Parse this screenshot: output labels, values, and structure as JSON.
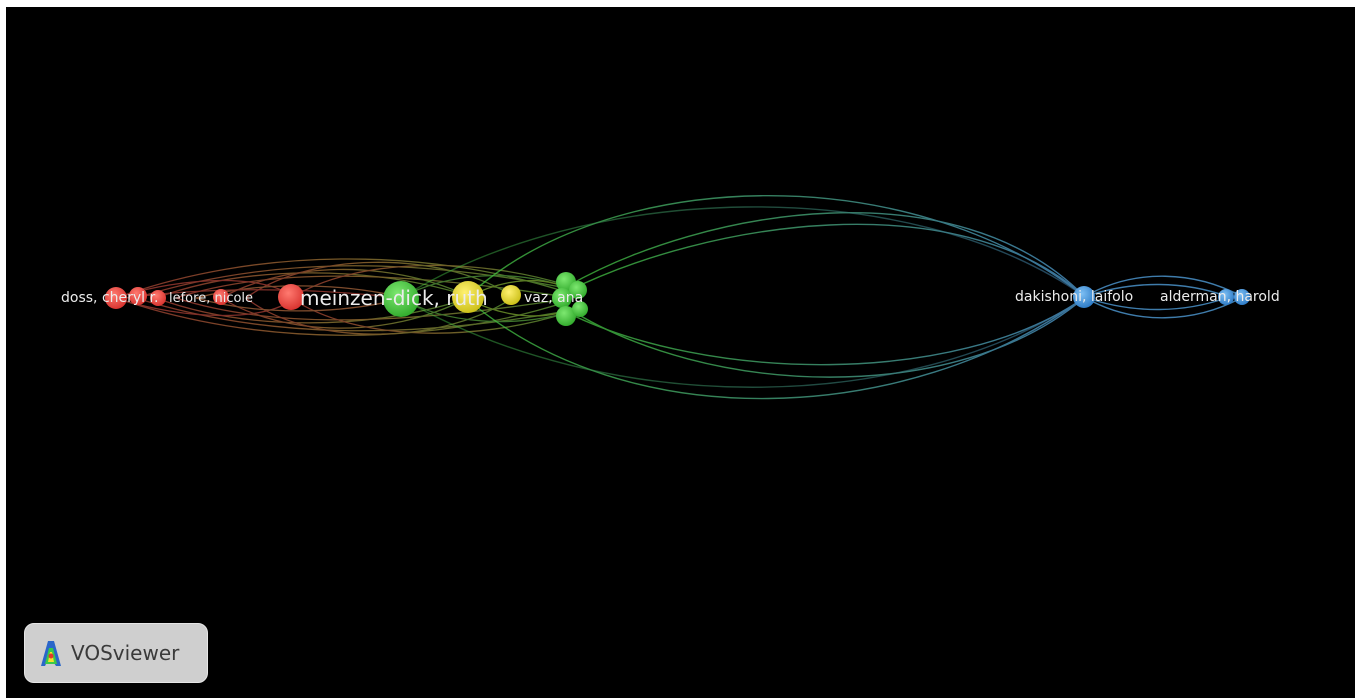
{
  "app": {
    "name": "VOSviewer",
    "logo_text": "VOSviewer"
  },
  "network": {
    "background": "#000000",
    "clusters": {
      "red": "#e8403c",
      "green": "#43c43a",
      "yellow": "#e7dd2a",
      "blue": "#3b8ed8"
    },
    "labels": {
      "doss": "doss, cheryl r.",
      "lefore": "lefore, nicole",
      "meinzen": "meinzen-dick, ruth",
      "vaz": "vaz, ana",
      "dakishoni": "dakishoni, laifolo",
      "alderman": "alderman, harold"
    }
  }
}
